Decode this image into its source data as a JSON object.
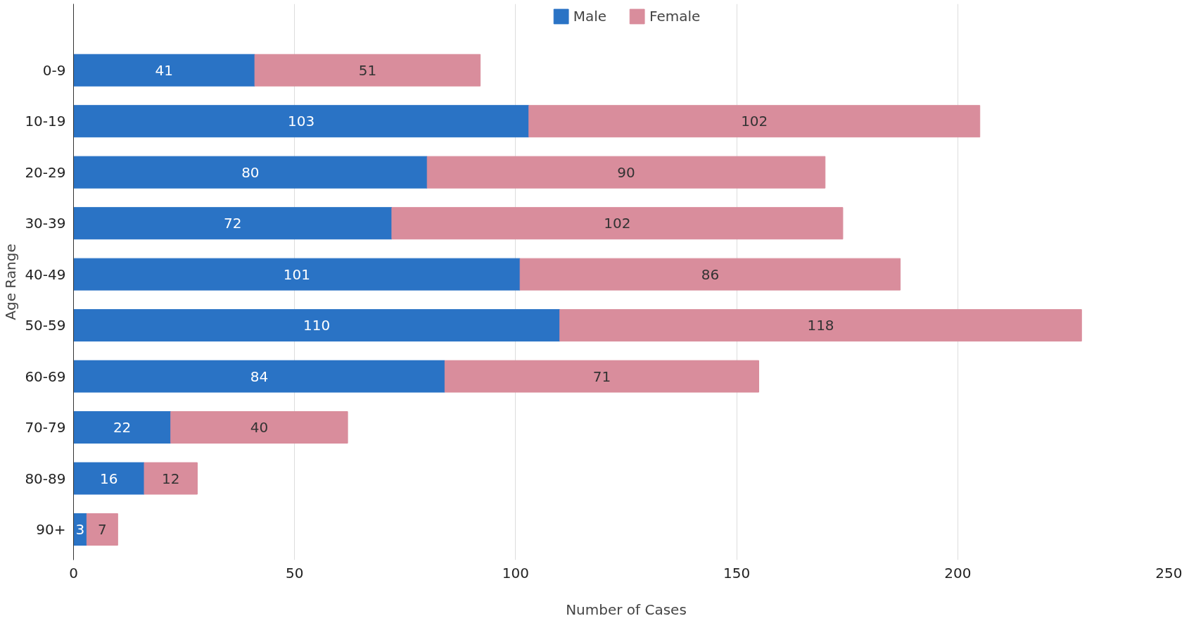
{
  "chart_data": {
    "type": "bar",
    "orientation": "horizontal",
    "stacked": true,
    "xlabel": "Number of Cases",
    "ylabel": "Age Range",
    "categories": [
      "0-9",
      "10-19",
      "20-29",
      "30-39",
      "40-49",
      "50-59",
      "60-69",
      "70-79",
      "80-89",
      "90+"
    ],
    "series": [
      {
        "name": "Male",
        "color": "#2a73c5",
        "values": [
          41,
          103,
          80,
          72,
          101,
          110,
          84,
          22,
          16,
          3
        ]
      },
      {
        "name": "Female",
        "color": "#d98d9c",
        "values": [
          51,
          102,
          90,
          102,
          86,
          118,
          71,
          40,
          12,
          7
        ]
      }
    ],
    "xlim": [
      0,
      250
    ],
    "xticks": [
      0,
      50,
      100,
      150,
      200,
      250
    ],
    "grid": "x",
    "legend": "top",
    "data_labels": true
  }
}
